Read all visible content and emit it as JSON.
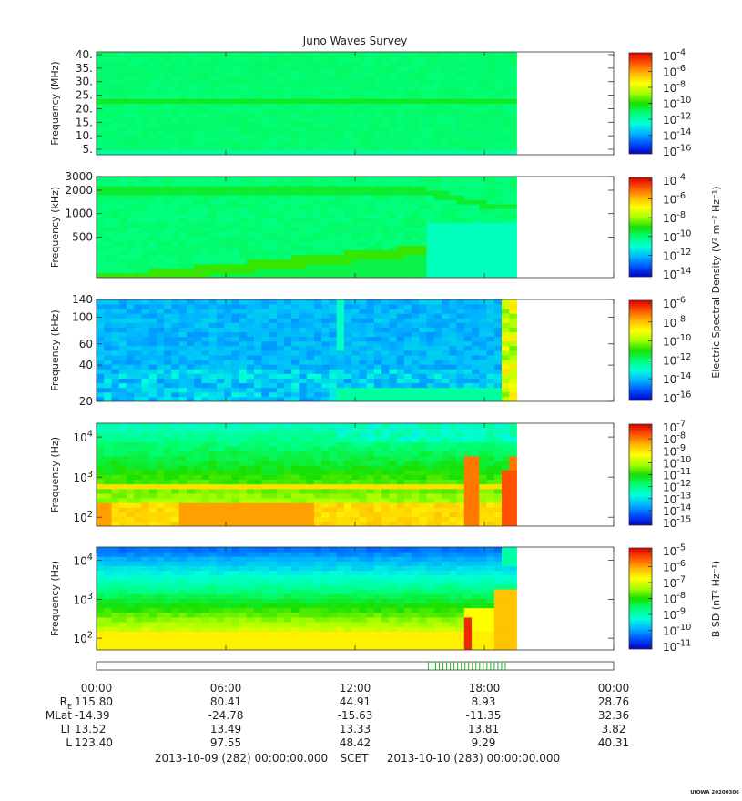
{
  "chart_data": {
    "type": "heatmap",
    "title": "Juno Waves Survey",
    "time_axis": {
      "ticks": [
        "00:00",
        "06:00",
        "12:00",
        "18:00",
        "00:00"
      ],
      "range_hours": [
        0,
        24
      ],
      "data_end_hours": 19.5
    },
    "panels": [
      {
        "ylabel": "Frequency (MHz)",
        "yscale": "linear",
        "yticks": [
          "40.",
          "35.",
          "30.",
          "25.",
          "20.",
          "15.",
          "10.",
          "5."
        ],
        "yvals": [
          40,
          35,
          30,
          25,
          20,
          15,
          10,
          5
        ],
        "ylim": [
          3,
          41
        ],
        "colorbar_ticks": [
          {
            "base": "10",
            "exp": "-4"
          },
          {
            "base": "10",
            "exp": "-6"
          },
          {
            "base": "10",
            "exp": "-8"
          },
          {
            "base": "10",
            "exp": "-10"
          },
          {
            "base": "10",
            "exp": "-12"
          },
          {
            "base": "10",
            "exp": "-14"
          },
          {
            "base": "10",
            "exp": "-16"
          }
        ]
      },
      {
        "ylabel": "Frequency (kHz)",
        "yscale": "log",
        "yticks": [
          "3000",
          "2000",
          "1000",
          "500"
        ],
        "yvals": [
          3000,
          2000,
          1000,
          500
        ],
        "ylim": [
          150,
          3000
        ],
        "colorbar_ticks": [
          {
            "base": "10",
            "exp": "-4"
          },
          {
            "base": "10",
            "exp": "-6"
          },
          {
            "base": "10",
            "exp": "-8"
          },
          {
            "base": "10",
            "exp": "-10"
          },
          {
            "base": "10",
            "exp": "-12"
          },
          {
            "base": "10",
            "exp": "-14"
          }
        ]
      },
      {
        "ylabel": "Frequency (kHz)",
        "yscale": "log",
        "yticks": [
          "140",
          "100",
          "60",
          "40",
          "20"
        ],
        "yvals": [
          140,
          100,
          60,
          40,
          20
        ],
        "ylim": [
          20,
          140
        ],
        "colorbar_ticks": [
          {
            "base": "10",
            "exp": "-6"
          },
          {
            "base": "10",
            "exp": "-8"
          },
          {
            "base": "10",
            "exp": "-10"
          },
          {
            "base": "10",
            "exp": "-12"
          },
          {
            "base": "10",
            "exp": "-14"
          },
          {
            "base": "10",
            "exp": "-16"
          }
        ]
      },
      {
        "ylabel": "Frequency (Hz)",
        "yscale": "log",
        "yticks": [
          {
            "base": "10",
            "exp": "4"
          },
          {
            "base": "10",
            "exp": "3"
          },
          {
            "base": "10",
            "exp": "2"
          }
        ],
        "yvals": [
          10000,
          1000,
          100
        ],
        "ylim": [
          60,
          22000
        ],
        "colorbar_ticks": [
          {
            "base": "10",
            "exp": "-7"
          },
          {
            "base": "10",
            "exp": "-8"
          },
          {
            "base": "10",
            "exp": "-9"
          },
          {
            "base": "10",
            "exp": "-10"
          },
          {
            "base": "10",
            "exp": "-11"
          },
          {
            "base": "10",
            "exp": "-12"
          },
          {
            "base": "10",
            "exp": "-13"
          },
          {
            "base": "10",
            "exp": "-14"
          },
          {
            "base": "10",
            "exp": "-15"
          }
        ]
      },
      {
        "ylabel": "Frequency (Hz)",
        "yscale": "log",
        "yticks": [
          {
            "base": "10",
            "exp": "4"
          },
          {
            "base": "10",
            "exp": "3"
          },
          {
            "base": "10",
            "exp": "2"
          }
        ],
        "yvals": [
          10000,
          1000,
          100
        ],
        "ylim": [
          50,
          22000
        ],
        "colorbar_ticks": [
          {
            "base": "10",
            "exp": "-5"
          },
          {
            "base": "10",
            "exp": "-6"
          },
          {
            "base": "10",
            "exp": "-7"
          },
          {
            "base": "10",
            "exp": "-8"
          },
          {
            "base": "10",
            "exp": "-9"
          },
          {
            "base": "10",
            "exp": "-10"
          },
          {
            "base": "10",
            "exp": "-11"
          }
        ]
      }
    ],
    "colorbar_labels": {
      "electric": "Electric Spectral Density (V² m⁻² Hz⁻¹)",
      "magnetic": "B SD (nT² Hz⁻¹)"
    },
    "ephemeris": {
      "rows": [
        {
          "label": "R",
          "sub": "E",
          "values": [
            "115.80",
            "80.41",
            "44.91",
            "8.93",
            "28.76"
          ]
        },
        {
          "label": "MLat",
          "sub": "",
          "values": [
            "-14.39",
            "-24.78",
            "-15.63",
            "-11.35",
            "32.36"
          ]
        },
        {
          "label": "LT",
          "sub": "",
          "values": [
            "13.52",
            "13.49",
            "13.33",
            "13.81",
            "3.82"
          ]
        },
        {
          "label": "L",
          "sub": "",
          "values": [
            "123.40",
            "97.55",
            "48.42",
            "9.29",
            "40.31"
          ]
        }
      ]
    },
    "footer": {
      "start": "2013-10-09 (282) 00:00:00.000",
      "scet": "SCET",
      "end": "2013-10-10 (283) 00:00:00.000"
    },
    "credit": "UIOWA 20200306",
    "colormap": [
      "#0000c8",
      "#0050ff",
      "#00b4ff",
      "#00ffd8",
      "#00ff7a",
      "#18e000",
      "#a8ff00",
      "#ffff00",
      "#ffb400",
      "#ff5000",
      "#dc0000"
    ]
  }
}
